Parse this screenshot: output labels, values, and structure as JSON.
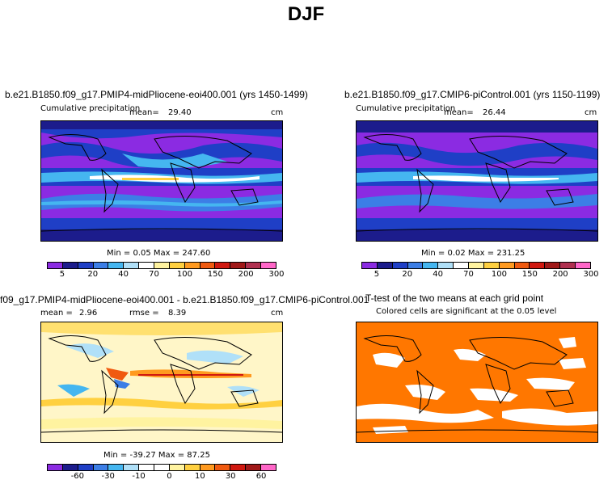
{
  "title": "DJF",
  "panels": {
    "p1": {
      "case": "b.e21.B1850.f09_g17.PMIP4-midPliocene-eoi400.001 (yrs 1450-1499)",
      "variable": "Cumulative precipitation",
      "mean_label": "mean=",
      "mean_value": "29.40",
      "units": "cm",
      "minmax": "Min =   0.05  Max = 247.60"
    },
    "p2": {
      "case": "b.e21.B1850.f09_g17.CMIP6-piControl.001 (yrs 1150-1199)",
      "variable": "Cumulative precipitation",
      "mean_label": "mean=",
      "mean_value": "26.44",
      "units": "cm",
      "minmax": "Min =   0.02  Max = 231.25"
    },
    "p3": {
      "case": "f09_g17.PMIP4-midPliocene-eoi400.001 - b.e21.B1850.f09_g17.CMIP6-piControl.001",
      "mean_label": "mean =",
      "mean_value": "2.96",
      "rmse_label": "rmse =",
      "rmse_value": "8.39",
      "units": "cm",
      "minmax": "Min = -39.27  Max =  87.25"
    },
    "p4": {
      "title": "T-test of the two means at each grid point",
      "subtitle": "Colored cells are significant at the 0.05 level"
    }
  },
  "colorbars": {
    "precip": {
      "labels": [
        "5",
        "20",
        "40",
        "70",
        "100",
        "150",
        "200",
        "300"
      ],
      "colors": [
        "#8b2be2",
        "#1c1c8c",
        "#1f3fc6",
        "#3c7ee6",
        "#45b6f0",
        "#b0e0f8",
        "#ffffff",
        "#fff3a0",
        "#ffd040",
        "#ff9a20",
        "#f05a10",
        "#d01810",
        "#a01818",
        "#b03050",
        "#ff66c8"
      ]
    },
    "diff": {
      "labels": [
        "-60",
        "-30",
        "-10",
        "0",
        "10",
        "30",
        "60"
      ],
      "colors": [
        "#8b2be2",
        "#1c1c8c",
        "#1f3fc6",
        "#3c7ee6",
        "#45b6f0",
        "#b0e0f8",
        "#ffffff",
        "#ffffff",
        "#fff3a0",
        "#ffd040",
        "#ff9a20",
        "#f05a10",
        "#d01810",
        "#a01818",
        "#ff66c8"
      ]
    }
  },
  "ttest_color": "#ff7700"
}
